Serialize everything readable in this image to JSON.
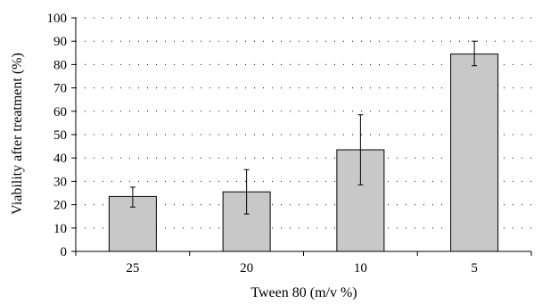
{
  "chart_data": {
    "type": "bar",
    "categories": [
      "25",
      "20",
      "10",
      "5"
    ],
    "values": [
      23.5,
      25.5,
      43.5,
      84.5
    ],
    "error_bars": [
      {
        "low": 19,
        "high": 27.5
      },
      {
        "low": 16,
        "high": 35
      },
      {
        "low": 28.5,
        "high": 58.5
      },
      {
        "low": 79.5,
        "high": 90
      }
    ],
    "xlabel": "Tween 80 (m/v %)",
    "ylabel": "Viability after treatment (%)",
    "ylim": [
      0,
      100
    ],
    "yticks": [
      0,
      10,
      20,
      30,
      40,
      50,
      60,
      70,
      80,
      90,
      100
    ],
    "grid": "horizontal dotted",
    "colors": {
      "bar_fill": "#c8c8c8",
      "bar_stroke": "#000000"
    }
  }
}
